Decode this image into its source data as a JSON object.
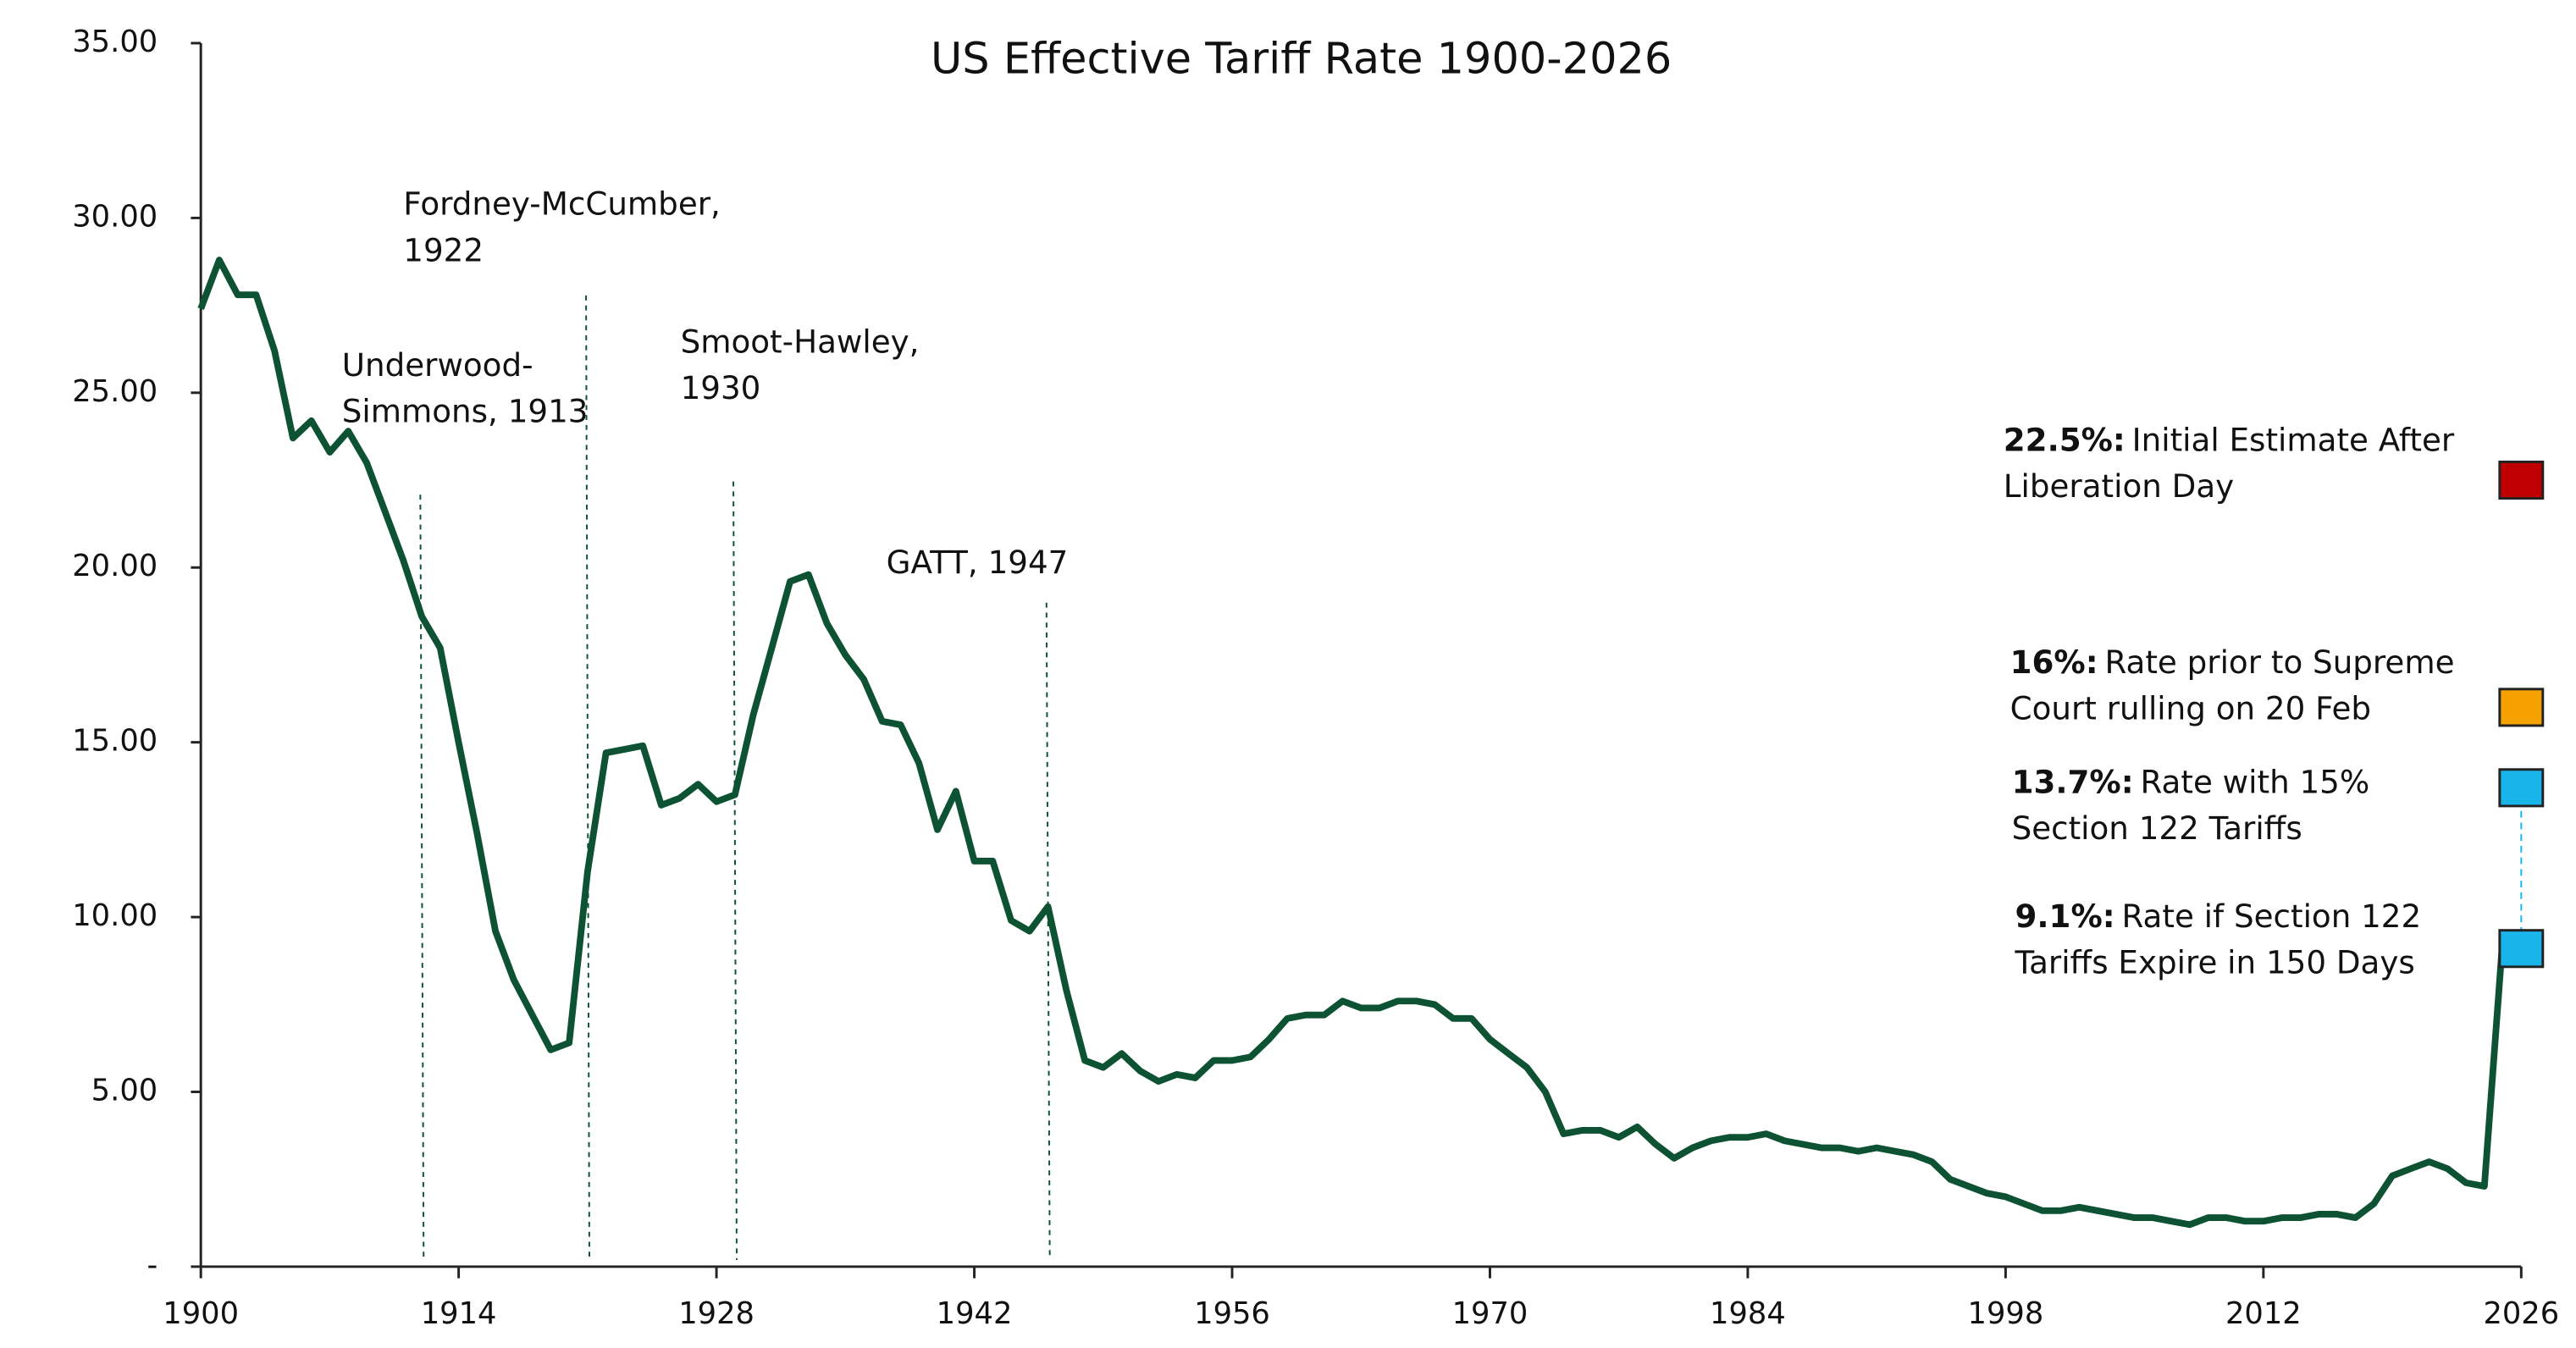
{
  "chart_data": {
    "type": "line",
    "title": "US Effective Tariff Rate 1900-2026",
    "x": [
      1900,
      1901,
      1902,
      1903,
      1904,
      1905,
      1906,
      1907,
      1908,
      1909,
      1910,
      1911,
      1912,
      1913,
      1914,
      1915,
      1916,
      1917,
      1918,
      1919,
      1920,
      1921,
      1922,
      1923,
      1924,
      1925,
      1926,
      1927,
      1928,
      1929,
      1930,
      1931,
      1932,
      1933,
      1934,
      1935,
      1936,
      1937,
      1938,
      1939,
      1940,
      1941,
      1942,
      1943,
      1944,
      1945,
      1946,
      1947,
      1948,
      1949,
      1950,
      1951,
      1952,
      1953,
      1954,
      1955,
      1956,
      1957,
      1958,
      1959,
      1960,
      1961,
      1962,
      1963,
      1964,
      1965,
      1966,
      1967,
      1968,
      1969,
      1970,
      1971,
      1972,
      1973,
      1974,
      1975,
      1976,
      1977,
      1978,
      1979,
      1980,
      1981,
      1982,
      1983,
      1984,
      1985,
      1986,
      1987,
      1988,
      1989,
      1990,
      1991,
      1992,
      1993,
      1994,
      1995,
      1996,
      1997,
      1998,
      1999,
      2000,
      2001,
      2002,
      2003,
      2004,
      2005,
      2006,
      2007,
      2008,
      2009,
      2010,
      2011,
      2012,
      2013,
      2014,
      2015,
      2016,
      2017,
      2018,
      2019,
      2020,
      2021,
      2022,
      2023,
      2024,
      2025
    ],
    "series": [
      {
        "name": "US Effective Tariff Rate",
        "color": "#0d5233",
        "values": [
          27.4,
          28.8,
          27.8,
          27.8,
          26.2,
          23.7,
          24.2,
          23.3,
          23.9,
          23.0,
          21.6,
          20.2,
          18.6,
          17.7,
          15.0,
          12.4,
          9.6,
          8.2,
          7.2,
          6.2,
          6.4,
          11.3,
          14.7,
          14.8,
          14.9,
          13.2,
          13.4,
          13.8,
          13.3,
          13.5,
          15.8,
          17.7,
          19.6,
          19.8,
          18.4,
          17.5,
          16.8,
          15.6,
          15.5,
          14.4,
          12.5,
          13.6,
          11.6,
          11.6,
          9.9,
          9.6,
          10.3,
          7.9,
          5.9,
          5.7,
          6.1,
          5.6,
          5.3,
          5.5,
          5.4,
          5.9,
          5.9,
          6.0,
          6.5,
          7.1,
          7.2,
          7.2,
          7.6,
          7.4,
          7.4,
          7.6,
          7.6,
          7.5,
          7.1,
          7.1,
          6.5,
          6.1,
          5.7,
          5.0,
          3.8,
          3.9,
          3.9,
          3.7,
          4.0,
          3.5,
          3.1,
          3.4,
          3.6,
          3.7,
          3.7,
          3.8,
          3.6,
          3.5,
          3.4,
          3.4,
          3.3,
          3.4,
          3.3,
          3.2,
          3.0,
          2.5,
          2.3,
          2.1,
          2.0,
          1.8,
          1.6,
          1.6,
          1.7,
          1.6,
          1.5,
          1.4,
          1.4,
          1.3,
          1.2,
          1.4,
          1.4,
          1.3,
          1.3,
          1.4,
          1.4,
          1.5,
          1.5,
          1.4,
          1.8,
          2.6,
          2.8,
          3.0,
          2.8,
          2.4,
          2.3,
          9.4
        ]
      }
    ],
    "xlim": [
      1900,
      2026
    ],
    "xticks": [
      1900,
      1914,
      1928,
      1942,
      1956,
      1970,
      1984,
      1998,
      2012,
      2026
    ],
    "ylim": [
      0,
      35
    ],
    "yticks": [
      {
        "value": 0,
        "label": "-"
      },
      {
        "value": 5,
        "label": "5.00"
      },
      {
        "value": 10,
        "label": "10.00"
      },
      {
        "value": 15,
        "label": "15.00"
      },
      {
        "value": 20,
        "label": "20.00"
      },
      {
        "value": 25,
        "label": "25.00"
      },
      {
        "value": 30,
        "label": "30.00"
      },
      {
        "value": 35,
        "label": "35.00"
      }
    ],
    "annotations": [
      {
        "x": 1913,
        "lines": [
          "Underwood-",
          "Simmons, 1913"
        ]
      },
      {
        "x": 1922,
        "lines": [
          "Fordney-McCumber,",
          "1922"
        ]
      },
      {
        "x": 1930,
        "lines": [
          "Smoot-Hawley,",
          "1930"
        ]
      },
      {
        "x": 1947,
        "lines": [
          "GATT, 1947"
        ]
      }
    ],
    "markers": [
      {
        "x": 2026,
        "value": 22.5,
        "value_label": "22.5%:",
        "color": "#c00000",
        "lines": [
          "Initial Estimate After",
          "Liberation Day"
        ]
      },
      {
        "x": 2026,
        "value": 16,
        "value_label": "16%:",
        "color": "#f5a100",
        "lines": [
          "Rate prior to Supreme",
          "Court rulling on 20 Feb"
        ]
      },
      {
        "x": 2026,
        "value": 13.7,
        "value_label": "13.7%:",
        "color": "#18b4ea",
        "lines": [
          "Rate with 15%",
          "Section 122 Tariffs"
        ]
      },
      {
        "x": 2026,
        "value": 9.1,
        "value_label": "9.1%:",
        "color": "#18b4ea",
        "lines": [
          "Rate if Section 122",
          "Tariffs Expire in 150 Days"
        ]
      }
    ]
  }
}
